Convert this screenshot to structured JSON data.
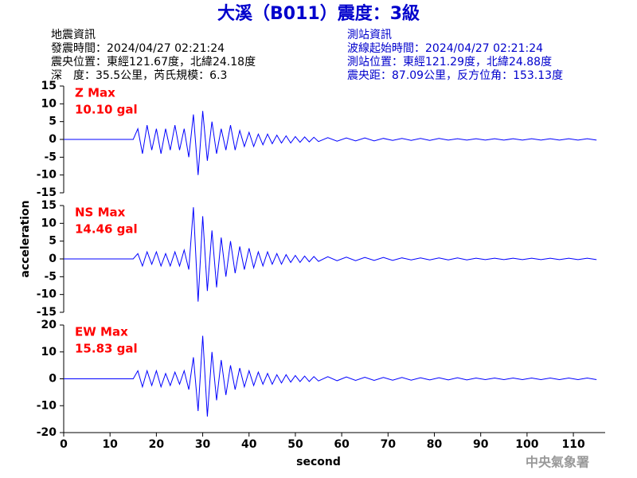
{
  "title": "大溪（B011）震度：3級",
  "earthquake_info": [
    "地震資訊",
    "發震時間：2024/04/27 02:21:24",
    "震央位置：東經121.67度，北緯24.18度",
    "深　度：35.5公里，芮氏規模：6.3"
  ],
  "station_info": [
    "測站資訊",
    "波線起始時間：2024/04/27 02:21:24",
    "測站位置：東經121.29度，北緯24.88度",
    "震央距：87.09公里，反方位角：153.13度"
  ],
  "ylabel": "acceleration",
  "watermark": "中央氣象署",
  "chart_data": [
    {
      "type": "line",
      "annotations": [
        "Z Max",
        "10.10 gal"
      ],
      "annotation_color": "#ff0000",
      "color": "#0000ff",
      "x": [
        0,
        15,
        16,
        17,
        18,
        19,
        20,
        21,
        22,
        23,
        24,
        25,
        26,
        27,
        28,
        29,
        30,
        31,
        32,
        33,
        34,
        35,
        36,
        37,
        38,
        39,
        40,
        41,
        42,
        43,
        44,
        45,
        46,
        47,
        48,
        49,
        50,
        51,
        52,
        53,
        54,
        55,
        57,
        59,
        61,
        63,
        65,
        67,
        69,
        71,
        73,
        75,
        77,
        79,
        81,
        83,
        85,
        87,
        89,
        91,
        93,
        95,
        97,
        99,
        101,
        103,
        105,
        107,
        109,
        111,
        113,
        115
      ],
      "values": [
        0,
        0,
        3,
        -4,
        4,
        -3,
        3,
        -4,
        3,
        -3,
        4,
        -3,
        3,
        -5,
        7,
        -10,
        8,
        -6,
        5,
        -4,
        3,
        -3,
        4,
        -3,
        2.5,
        -2,
        2,
        -2,
        1.5,
        -1.5,
        1.5,
        -1.2,
        1.2,
        -1,
        1,
        -1,
        0.8,
        -0.8,
        0.7,
        -0.7,
        0.6,
        -0.6,
        0.5,
        -0.5,
        0.4,
        -0.4,
        0.4,
        -0.4,
        0.3,
        -0.3,
        0.3,
        -0.3,
        0.3,
        -0.3,
        0.3,
        -0.2,
        0.2,
        -0.2,
        0.2,
        -0.2,
        0.2,
        -0.2,
        0.2,
        -0.2,
        0.2,
        -0.2,
        0.2,
        -0.2,
        0.2,
        -0.2,
        0.2,
        -0.2
      ],
      "xlim": [
        0,
        116
      ],
      "ylim": [
        -15,
        15
      ],
      "yticks": [
        -15,
        -10,
        -5,
        0,
        5,
        10,
        15
      ]
    },
    {
      "type": "line",
      "annotations": [
        "NS Max",
        "14.46 gal"
      ],
      "annotation_color": "#ff0000",
      "color": "#0000ff",
      "x": [
        0,
        15,
        16,
        17,
        18,
        19,
        20,
        21,
        22,
        23,
        24,
        25,
        26,
        27,
        28,
        29,
        30,
        31,
        32,
        33,
        34,
        35,
        36,
        37,
        38,
        39,
        40,
        41,
        42,
        43,
        44,
        45,
        46,
        47,
        48,
        49,
        50,
        51,
        52,
        53,
        54,
        55,
        57,
        59,
        61,
        63,
        65,
        67,
        69,
        71,
        73,
        75,
        77,
        79,
        81,
        83,
        85,
        87,
        89,
        91,
        93,
        95,
        97,
        99,
        101,
        103,
        105,
        107,
        109,
        111,
        113,
        115
      ],
      "values": [
        0,
        0,
        1.5,
        -2,
        2,
        -1.5,
        2,
        -2,
        1.5,
        -2,
        2,
        -2,
        2.5,
        -3,
        14.5,
        -12,
        12,
        -9,
        8,
        -8,
        6,
        -5,
        5,
        -4,
        3.5,
        -3,
        3,
        -2.5,
        2,
        -2,
        2,
        -1.5,
        1.5,
        -1.5,
        1.2,
        -1,
        1,
        -1,
        0.8,
        -0.8,
        0.7,
        -0.7,
        0.6,
        -0.5,
        0.5,
        -0.5,
        0.4,
        -0.4,
        0.4,
        -0.4,
        0.3,
        -0.3,
        0.3,
        -0.3,
        0.3,
        -0.3,
        0.3,
        -0.3,
        0.2,
        -0.2,
        0.2,
        -0.2,
        0.2,
        -0.2,
        0.2,
        -0.2,
        0.2,
        -0.2,
        0.2,
        -0.2,
        0.2,
        -0.2
      ],
      "xlim": [
        0,
        116
      ],
      "ylim": [
        -15,
        15
      ],
      "yticks": [
        -15,
        -10,
        -5,
        0,
        5,
        10,
        15
      ]
    },
    {
      "type": "line",
      "annotations": [
        "EW Max",
        "15.83 gal"
      ],
      "annotation_color": "#ff0000",
      "color": "#0000ff",
      "x": [
        0,
        15,
        16,
        17,
        18,
        19,
        20,
        21,
        22,
        23,
        24,
        25,
        26,
        27,
        28,
        29,
        30,
        31,
        32,
        33,
        34,
        35,
        36,
        37,
        38,
        39,
        40,
        41,
        42,
        43,
        44,
        45,
        46,
        47,
        48,
        49,
        50,
        51,
        52,
        53,
        54,
        55,
        57,
        59,
        61,
        63,
        65,
        67,
        69,
        71,
        73,
        75,
        77,
        79,
        81,
        83,
        85,
        87,
        89,
        91,
        93,
        95,
        97,
        99,
        101,
        103,
        105,
        107,
        109,
        111,
        113,
        115
      ],
      "values": [
        0,
        0,
        3,
        -3,
        3,
        -2.5,
        3,
        -3,
        2,
        -2.5,
        2.5,
        -2,
        3,
        -4,
        8,
        -12,
        16,
        -14,
        10,
        -8,
        7,
        -6,
        5,
        -4,
        4,
        -3,
        3,
        -2.5,
        2.5,
        -2,
        2,
        -2,
        1.5,
        -1.5,
        1.5,
        -1.2,
        1.2,
        -1,
        1,
        -1,
        0.8,
        -0.8,
        0.8,
        -0.7,
        0.7,
        -0.6,
        0.6,
        -0.6,
        0.5,
        -0.5,
        0.5,
        -0.5,
        0.4,
        -0.4,
        0.4,
        -0.4,
        0.4,
        -0.4,
        0.3,
        -0.3,
        0.3,
        -0.3,
        0.3,
        -0.3,
        0.3,
        -0.3,
        0.3,
        -0.3,
        0.3,
        -0.3,
        0.3,
        -0.3
      ],
      "xlim": [
        0,
        116
      ],
      "ylim": [
        -20,
        20
      ],
      "yticks": [
        -20,
        -10,
        0,
        10,
        20
      ],
      "xticks": [
        0,
        10,
        20,
        30,
        40,
        50,
        60,
        70,
        80,
        90,
        100,
        110
      ],
      "xlabel": "second"
    }
  ]
}
